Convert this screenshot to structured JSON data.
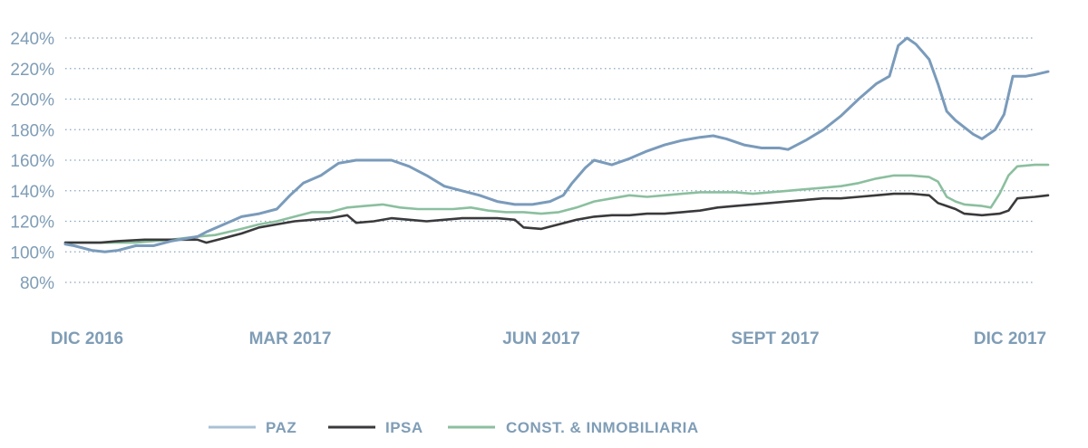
{
  "chart_data": {
    "type": "line",
    "x_labels": [
      "DIC 2016",
      "MAR 2017",
      "JUN 2017",
      "SEPT 2017",
      "DIC 2017"
    ],
    "y_ticks": [
      80,
      100,
      120,
      140,
      160,
      180,
      200,
      220,
      240
    ],
    "y_tick_labels": [
      "80%",
      "100%",
      "120%",
      "140%",
      "160%",
      "180%",
      "200%",
      "220%",
      "240%"
    ],
    "ylim": [
      80,
      240
    ],
    "grid": true,
    "legend_position": "bottom",
    "series": [
      {
        "name": "PAZ",
        "color": "#7a9bbb",
        "points": [
          [
            0,
            105
          ],
          [
            0.01,
            104
          ],
          [
            0.03,
            101
          ],
          [
            0.045,
            100
          ],
          [
            0.06,
            101
          ],
          [
            0.08,
            104
          ],
          [
            0.1,
            104
          ],
          [
            0.12,
            107
          ],
          [
            0.15,
            110
          ],
          [
            0.16,
            113
          ],
          [
            0.18,
            118
          ],
          [
            0.2,
            123
          ],
          [
            0.22,
            125
          ],
          [
            0.24,
            128
          ],
          [
            0.255,
            137
          ],
          [
            0.27,
            145
          ],
          [
            0.29,
            150
          ],
          [
            0.31,
            158
          ],
          [
            0.33,
            160
          ],
          [
            0.35,
            160
          ],
          [
            0.37,
            160
          ],
          [
            0.39,
            156
          ],
          [
            0.41,
            150
          ],
          [
            0.43,
            143
          ],
          [
            0.45,
            140
          ],
          [
            0.47,
            137
          ],
          [
            0.49,
            133
          ],
          [
            0.51,
            131
          ],
          [
            0.53,
            131
          ],
          [
            0.55,
            133
          ],
          [
            0.565,
            137
          ],
          [
            0.575,
            145
          ],
          [
            0.59,
            155
          ],
          [
            0.6,
            160
          ],
          [
            0.62,
            157
          ],
          [
            0.64,
            161
          ],
          [
            0.66,
            166
          ],
          [
            0.68,
            170
          ],
          [
            0.7,
            173
          ],
          [
            0.72,
            175
          ],
          [
            0.735,
            176
          ],
          [
            0.75,
            174
          ],
          [
            0.77,
            170
          ],
          [
            0.79,
            168
          ],
          [
            0.81,
            168
          ],
          [
            0.82,
            167
          ],
          [
            0.84,
            173
          ],
          [
            0.86,
            180
          ],
          [
            0.88,
            189
          ],
          [
            0.9,
            200
          ],
          [
            0.92,
            210
          ],
          [
            0.935,
            215
          ],
          [
            0.945,
            235
          ],
          [
            0.955,
            240
          ],
          [
            0.965,
            236
          ],
          [
            0.98,
            226
          ],
          [
            0.99,
            210
          ],
          [
            1.0,
            192
          ],
          [
            1.01,
            186
          ],
          [
            1.03,
            177
          ],
          [
            1.04,
            174
          ],
          [
            1.055,
            180
          ],
          [
            1.065,
            190
          ],
          [
            1.075,
            215
          ],
          [
            1.09,
            215
          ],
          [
            1.1,
            216
          ],
          [
            1.115,
            218
          ]
        ]
      },
      {
        "name": "IPSA",
        "color": "#3a3a3c",
        "points": [
          [
            0,
            106
          ],
          [
            0.04,
            106
          ],
          [
            0.06,
            107
          ],
          [
            0.09,
            108
          ],
          [
            0.12,
            108
          ],
          [
            0.15,
            108
          ],
          [
            0.16,
            106
          ],
          [
            0.18,
            109
          ],
          [
            0.2,
            112
          ],
          [
            0.22,
            116
          ],
          [
            0.24,
            118
          ],
          [
            0.26,
            120
          ],
          [
            0.28,
            121
          ],
          [
            0.3,
            122
          ],
          [
            0.32,
            124
          ],
          [
            0.33,
            119
          ],
          [
            0.35,
            120
          ],
          [
            0.37,
            122
          ],
          [
            0.39,
            121
          ],
          [
            0.41,
            120
          ],
          [
            0.43,
            121
          ],
          [
            0.45,
            122
          ],
          [
            0.47,
            122
          ],
          [
            0.49,
            122
          ],
          [
            0.51,
            121
          ],
          [
            0.52,
            116
          ],
          [
            0.54,
            115
          ],
          [
            0.56,
            118
          ],
          [
            0.58,
            121
          ],
          [
            0.6,
            123
          ],
          [
            0.62,
            124
          ],
          [
            0.64,
            124
          ],
          [
            0.66,
            125
          ],
          [
            0.68,
            125
          ],
          [
            0.7,
            126
          ],
          [
            0.72,
            127
          ],
          [
            0.74,
            129
          ],
          [
            0.76,
            130
          ],
          [
            0.78,
            131
          ],
          [
            0.8,
            132
          ],
          [
            0.82,
            133
          ],
          [
            0.84,
            134
          ],
          [
            0.86,
            135
          ],
          [
            0.88,
            135
          ],
          [
            0.9,
            136
          ],
          [
            0.92,
            137
          ],
          [
            0.94,
            138
          ],
          [
            0.96,
            138
          ],
          [
            0.98,
            137
          ],
          [
            0.99,
            132
          ],
          [
            1.0,
            130
          ],
          [
            1.01,
            128
          ],
          [
            1.02,
            125
          ],
          [
            1.04,
            124
          ],
          [
            1.06,
            125
          ],
          [
            1.07,
            127
          ],
          [
            1.08,
            135
          ],
          [
            1.1,
            136
          ],
          [
            1.115,
            137
          ]
        ]
      },
      {
        "name": "CONST. & INMOBILIARIA",
        "color": "#8bbf9f",
        "points": [
          [
            0,
            106
          ],
          [
            0.04,
            106
          ],
          [
            0.08,
            106
          ],
          [
            0.12,
            108
          ],
          [
            0.15,
            110
          ],
          [
            0.17,
            111
          ],
          [
            0.2,
            115
          ],
          [
            0.22,
            118
          ],
          [
            0.24,
            120
          ],
          [
            0.26,
            123
          ],
          [
            0.28,
            126
          ],
          [
            0.3,
            126
          ],
          [
            0.32,
            129
          ],
          [
            0.34,
            130
          ],
          [
            0.36,
            131
          ],
          [
            0.38,
            129
          ],
          [
            0.4,
            128
          ],
          [
            0.42,
            128
          ],
          [
            0.44,
            128
          ],
          [
            0.46,
            129
          ],
          [
            0.48,
            127
          ],
          [
            0.5,
            126
          ],
          [
            0.52,
            126
          ],
          [
            0.54,
            125
          ],
          [
            0.56,
            126
          ],
          [
            0.58,
            129
          ],
          [
            0.6,
            133
          ],
          [
            0.62,
            135
          ],
          [
            0.64,
            137
          ],
          [
            0.66,
            136
          ],
          [
            0.68,
            137
          ],
          [
            0.7,
            138
          ],
          [
            0.72,
            139
          ],
          [
            0.74,
            139
          ],
          [
            0.76,
            139
          ],
          [
            0.78,
            138
          ],
          [
            0.8,
            139
          ],
          [
            0.82,
            140
          ],
          [
            0.84,
            141
          ],
          [
            0.86,
            142
          ],
          [
            0.88,
            143
          ],
          [
            0.9,
            145
          ],
          [
            0.92,
            148
          ],
          [
            0.94,
            150
          ],
          [
            0.96,
            150
          ],
          [
            0.98,
            149
          ],
          [
            0.99,
            146
          ],
          [
            1.0,
            136
          ],
          [
            1.01,
            133
          ],
          [
            1.02,
            131
          ],
          [
            1.04,
            130
          ],
          [
            1.05,
            129
          ],
          [
            1.06,
            138
          ],
          [
            1.07,
            150
          ],
          [
            1.08,
            156
          ],
          [
            1.1,
            157
          ],
          [
            1.115,
            157
          ]
        ]
      }
    ]
  },
  "legend": {
    "items": [
      {
        "label": "PAZ",
        "color": "#a9c1d4"
      },
      {
        "label": "IPSA",
        "color": "#3a3a3c"
      },
      {
        "label": "CONST. & INMOBILIARIA",
        "color": "#8bbf9f"
      }
    ]
  }
}
